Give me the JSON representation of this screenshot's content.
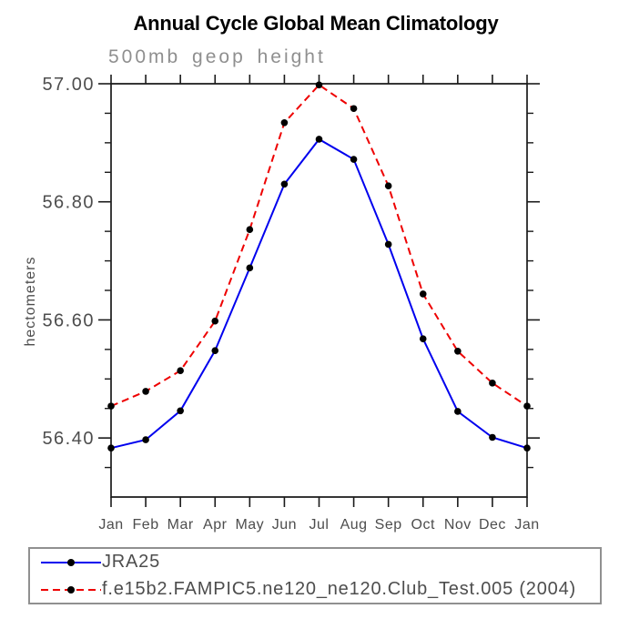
{
  "chart_data": {
    "type": "line",
    "title": "Annual Cycle Global Mean Climatology",
    "subtitle": "500mb geop height",
    "ylabel": "hectometers",
    "xlabel": "",
    "categories": [
      "Jan",
      "Feb",
      "Mar",
      "Apr",
      "May",
      "Jun",
      "Jul",
      "Aug",
      "Sep",
      "Oct",
      "Nov",
      "Dec",
      "Jan"
    ],
    "ylim": [
      56.3,
      57.0
    ],
    "yticks_major": [
      56.4,
      56.6,
      56.8,
      57.0
    ],
    "ytick_minor_step": 0.05,
    "grid": false,
    "legend_position": "bottom-outside",
    "frame": "box-with-outward-ticks",
    "marker": {
      "shape": "filled-circle",
      "color": "#000000"
    },
    "series": [
      {
        "name": "JRA25",
        "color": "#0000ee",
        "style": "solid",
        "values": [
          56.383,
          56.397,
          56.446,
          56.548,
          56.688,
          56.83,
          56.906,
          56.872,
          56.728,
          56.568,
          56.445,
          56.401,
          56.383
        ]
      },
      {
        "name": "f.e15b2.FAMPIC5.ne120_ne120.Club_Test.005 (2004)",
        "color": "#ee0000",
        "style": "dashed",
        "values": [
          56.454,
          56.479,
          56.514,
          56.598,
          56.753,
          56.934,
          56.998,
          56.958,
          56.827,
          56.644,
          56.547,
          56.493,
          56.454
        ]
      }
    ]
  }
}
